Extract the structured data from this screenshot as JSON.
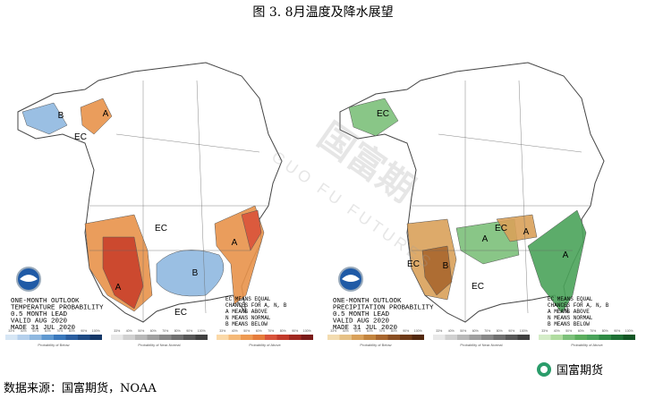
{
  "title": "图 3. 8月温度及降水展望",
  "watermark": {
    "main": "国富期",
    "sub": "GUO FU FUTURES"
  },
  "maps": [
    {
      "heading": [
        "ONE-MONTH OUTLOOK",
        "TEMPERATURE PROBABILITY",
        "0.5 MONTH LEAD",
        "VALID AUG 2020",
        "MADE 31 JUL 2020"
      ],
      "key": [
        "EC MEANS EQUAL",
        "CHANCES FOR A, N, B",
        "A MEANS ABOVE",
        "N MEANS NORMAL",
        "B MEANS BELOW"
      ],
      "labels": [
        "A",
        "B",
        "EC",
        "EC",
        "A",
        "B",
        "A",
        "EC"
      ],
      "scales": [
        {
          "caption": "Probability of Below",
          "ticks": [
            "33%",
            "40%",
            "50%",
            "60%",
            "70%",
            "80%",
            "90%",
            "100%"
          ]
        },
        {
          "caption": "Probability of Near-Normal",
          "ticks": [
            "33%",
            "40%",
            "50%",
            "60%",
            "70%",
            "80%",
            "90%",
            "100%"
          ]
        },
        {
          "caption": "Probability of Above",
          "ticks": [
            "33%",
            "40%",
            "50%",
            "60%",
            "70%",
            "80%",
            "90%",
            "100%"
          ]
        }
      ]
    },
    {
      "heading": [
        "ONE-MONTH OUTLOOK",
        "PRECIPITATION PROBABILITY",
        "0.5 MONTH LEAD",
        "VALID AUG 2020",
        "MADE 31 JUL 2020"
      ],
      "key": [
        "EC MEANS EQUAL",
        "CHANCES FOR A, N, B",
        "A MEANS ABOVE",
        "N MEANS NORMAL",
        "B MEANS BELOW"
      ],
      "labels": [
        "EC",
        "EC",
        "B",
        "A",
        "A",
        "A",
        "EC",
        "EC"
      ],
      "scales": [
        {
          "caption": "Probability of Below",
          "ticks": [
            "33%",
            "40%",
            "50%",
            "60%",
            "70%",
            "80%",
            "90%",
            "100%"
          ]
        },
        {
          "caption": "Probability of Near-Normal",
          "ticks": [
            "33%",
            "40%",
            "50%",
            "60%",
            "70%",
            "80%",
            "90%",
            "100%"
          ]
        },
        {
          "caption": "Probability of Above",
          "ticks": [
            "33%",
            "40%",
            "50%",
            "60%",
            "70%",
            "80%",
            "90%",
            "100%"
          ]
        }
      ]
    }
  ],
  "source": "数据来源：国富期货，NOAA",
  "brand": "国富期货"
}
